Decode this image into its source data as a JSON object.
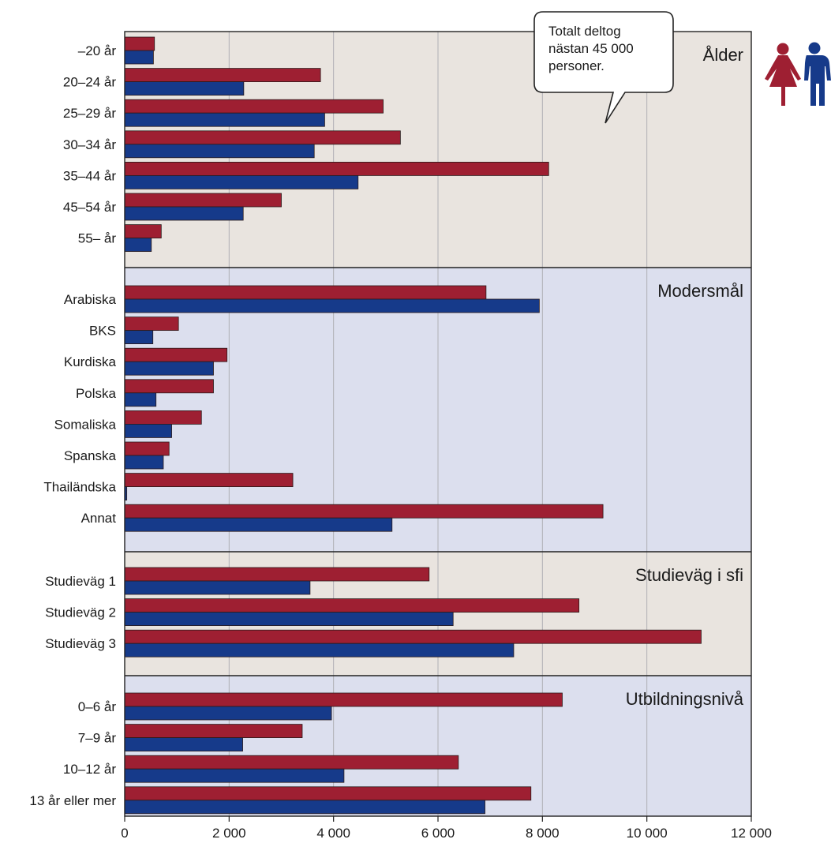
{
  "chart_data": {
    "type": "bar",
    "orientation": "horizontal",
    "xlim": [
      0,
      12000
    ],
    "xticks": [
      0,
      2000,
      4000,
      6000,
      8000,
      10000,
      12000
    ],
    "xtick_labels": [
      "0",
      "2 000",
      "4 000",
      "6 000",
      "8 000",
      "10 000",
      "12 000"
    ],
    "grid": "vertical",
    "series_colors": [
      "#9e1f32",
      "#163a8a"
    ],
    "panels": [
      {
        "title": "Ålder",
        "background": "#e9e4df",
        "categories": [
          "–20 år",
          "20–24 år",
          "25–29 år",
          "30–34 år",
          "35–44 år",
          "45–54 år",
          "55– år"
        ],
        "series": [
          {
            "values": [
              570,
              3750,
              4950,
              5280,
              8120,
              3000,
              700
            ]
          },
          {
            "values": [
              550,
              2280,
              3830,
              3630,
              4470,
              2270,
              510
            ]
          }
        ]
      },
      {
        "title": "Modersmål",
        "background": "#dcdfee",
        "categories": [
          "Arabiska",
          "BKS",
          "Kurdiska",
          "Polska",
          "Somaliska",
          "Spanska",
          "Thailändska",
          "Annat"
        ],
        "series": [
          {
            "values": [
              6920,
              1030,
              1960,
              1700,
              1470,
              850,
              3220,
              9160
            ]
          },
          {
            "values": [
              7940,
              540,
              1700,
              600,
              900,
              740,
              40,
              5120
            ]
          }
        ]
      },
      {
        "title": "Studieväg i sfi",
        "background": "#e9e4df",
        "categories": [
          "Studieväg 1",
          "Studieväg 2",
          "Studieväg 3"
        ],
        "series": [
          {
            "values": [
              5830,
              8700,
              11040
            ]
          },
          {
            "values": [
              3550,
              6290,
              7450
            ]
          }
        ]
      },
      {
        "title": "Utbildningsnivå",
        "background": "#dcdfee",
        "categories": [
          "0–6 år",
          "7–9 år",
          "10–12 år",
          "13 år eller mer"
        ],
        "series": [
          {
            "values": [
              8380,
              3400,
              6390,
              7780
            ]
          },
          {
            "values": [
              3960,
              2260,
              4200,
              6900
            ]
          }
        ]
      }
    ]
  },
  "callout": {
    "lines": [
      "Totalt deltog",
      "nästan 45 000",
      "personer."
    ]
  },
  "icons": {
    "woman": "woman-icon",
    "man": "man-icon",
    "woman_color": "#9e1f32",
    "man_color": "#163a8a"
  }
}
